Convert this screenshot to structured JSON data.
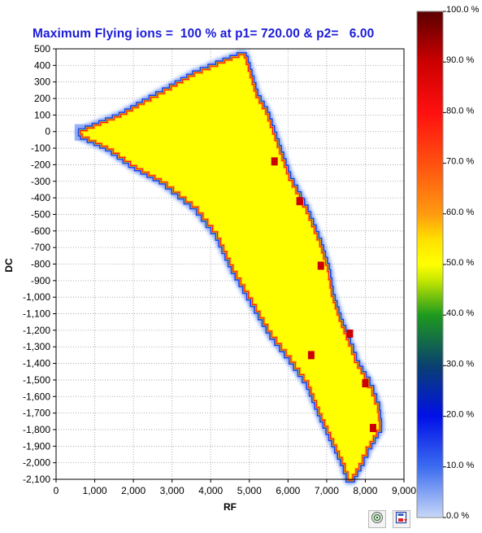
{
  "title": "Maximum Flying ions =  100 % at p1= 720.00 & p2=   6.00",
  "toolbar": {
    "button1_icon": "settings-disc-icon",
    "button2_icon": "save-image-icon"
  },
  "chart_data": {
    "type": "heatmap",
    "title": "Maximum Flying ions =  100 % at p1= 720.00 & p2=   6.00",
    "xlabel": "RF",
    "ylabel": "DC",
    "xlim": [
      0,
      9000
    ],
    "ylim": [
      -2100,
      500
    ],
    "grid": true,
    "x_ticks": [
      "0",
      "1,000",
      "2,000",
      "3,000",
      "4,000",
      "5,000",
      "6,000",
      "7,000",
      "8,000",
      "9,000"
    ],
    "y_ticks": [
      "500",
      "400",
      "300",
      "200",
      "100",
      "0",
      "-100",
      "-200",
      "-300",
      "-400",
      "-500",
      "-600",
      "-700",
      "-800",
      "-900",
      "-1,000",
      "-1,100",
      "-1,200",
      "-1,300",
      "-1,400",
      "-1,500",
      "-1,600",
      "-1,700",
      "-1,800",
      "-1,900",
      "-2,000",
      "-2,100"
    ],
    "colorbar": {
      "label_unit": "%",
      "ticks": [
        "100.0 %",
        "90.0 %",
        "80.0 %",
        "70.0 %",
        "60.0 %",
        "50.0 %",
        "40.0 %",
        "30.0 %",
        "20.0 %",
        "10.0 %",
        "0.0 %"
      ],
      "tick_values": [
        100,
        90,
        80,
        70,
        60,
        50,
        40,
        30,
        20,
        10,
        0
      ],
      "stops": [
        {
          "value": 0,
          "color": "#c8d8f8"
        },
        {
          "value": 10,
          "color": "#3c6cf0"
        },
        {
          "value": 20,
          "color": "#0010e8"
        },
        {
          "value": 30,
          "color": "#0a4070"
        },
        {
          "value": 40,
          "color": "#1e9a1e"
        },
        {
          "value": 47,
          "color": "#c8e800"
        },
        {
          "value": 50,
          "color": "#ffff00"
        },
        {
          "value": 55,
          "color": "#ffe000"
        },
        {
          "value": 60,
          "color": "#ff9a10"
        },
        {
          "value": 70,
          "color": "#ff5010"
        },
        {
          "value": 80,
          "color": "#ff1010"
        },
        {
          "value": 90,
          "color": "#cc0000"
        },
        {
          "value": 100,
          "color": "#5a0000"
        }
      ]
    },
    "stability_region": {
      "fill_value": 50,
      "edge_value": 80,
      "outer_glow_value": 5,
      "boundary_rf_dc": [
        [
          650,
          0
        ],
        [
          1700,
          100
        ],
        [
          2300,
          180
        ],
        [
          3000,
          270
        ],
        [
          3600,
          350
        ],
        [
          4200,
          410
        ],
        [
          4750,
          460
        ],
        [
          4850,
          440
        ],
        [
          5150,
          200
        ],
        [
          5400,
          100
        ],
        [
          5700,
          -100
        ],
        [
          6000,
          -300
        ],
        [
          6450,
          -500
        ],
        [
          6800,
          -700
        ],
        [
          7000,
          -850
        ],
        [
          7100,
          -1000
        ],
        [
          7300,
          -1150
        ],
        [
          7550,
          -1300
        ],
        [
          7700,
          -1400
        ],
        [
          7950,
          -1500
        ],
        [
          8150,
          -1600
        ],
        [
          8300,
          -1700
        ],
        [
          8350,
          -1800
        ],
        [
          8100,
          -1900
        ],
        [
          7900,
          -2000
        ],
        [
          7650,
          -2100
        ],
        [
          7500,
          -2000
        ],
        [
          7200,
          -1850
        ],
        [
          6900,
          -1700
        ],
        [
          6550,
          -1500
        ],
        [
          6100,
          -1350
        ],
        [
          5600,
          -1200
        ],
        [
          5100,
          -1000
        ],
        [
          4600,
          -800
        ],
        [
          4200,
          -600
        ],
        [
          3700,
          -450
        ],
        [
          2900,
          -300
        ],
        [
          2100,
          -200
        ],
        [
          1500,
          -100
        ],
        [
          1050,
          -50
        ],
        [
          700,
          -10
        ]
      ],
      "hot_spots": [
        {
          "rf": 5650,
          "dc": -180,
          "value": 90
        },
        {
          "rf": 6300,
          "dc": -420,
          "value": 90
        },
        {
          "rf": 6850,
          "dc": -810,
          "value": 90
        },
        {
          "rf": 7600,
          "dc": -1220,
          "value": 90
        },
        {
          "rf": 8000,
          "dc": -1520,
          "value": 90
        },
        {
          "rf": 6600,
          "dc": -1350,
          "value": 90
        },
        {
          "rf": 8200,
          "dc": -1790,
          "value": 90
        }
      ]
    }
  }
}
